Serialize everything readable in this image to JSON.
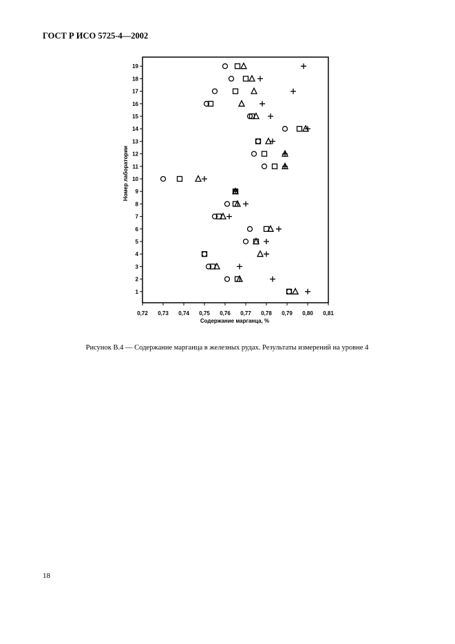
{
  "header": {
    "title": "ГОСТ Р ИСО 5725-4—2002"
  },
  "chart_data": {
    "type": "scatter",
    "x_label": "Содержание марганца, %",
    "y_label": "Номер лаборатории",
    "xlim": [
      0.72,
      0.81
    ],
    "xticks": [
      {
        "value": 0.72,
        "label": "0,72"
      },
      {
        "value": 0.73,
        "label": "0,73"
      },
      {
        "value": 0.74,
        "label": "0,74"
      },
      {
        "value": 0.75,
        "label": "0,75"
      },
      {
        "value": 0.76,
        "label": "0,76"
      },
      {
        "value": 0.77,
        "label": "0,77"
      },
      {
        "value": 0.78,
        "label": "0,78"
      },
      {
        "value": 0.79,
        "label": "0,79"
      },
      {
        "value": 0.8,
        "label": "0,80"
      },
      {
        "value": 0.81,
        "label": "0,81"
      }
    ],
    "ylim": [
      0,
      20
    ],
    "yticks": [
      1,
      2,
      3,
      4,
      5,
      6,
      7,
      8,
      9,
      10,
      11,
      12,
      13,
      14,
      15,
      16,
      17,
      18,
      19
    ],
    "y": [
      1,
      2,
      3,
      4,
      5,
      6,
      7,
      8,
      9,
      10,
      11,
      12,
      13,
      14,
      15,
      16,
      17,
      18,
      19
    ],
    "color": "#000000",
    "series": [
      {
        "marker": "circle",
        "x": [
          0.791,
          0.761,
          0.752,
          0.75,
          0.77,
          0.772,
          0.755,
          0.761,
          0.765,
          0.73,
          0.779,
          0.774,
          0.776,
          0.789,
          0.772,
          0.751,
          0.755,
          0.763,
          0.76
        ]
      },
      {
        "marker": "square",
        "x": [
          0.791,
          0.766,
          0.754,
          0.75,
          0.775,
          0.78,
          0.757,
          0.765,
          0.765,
          0.738,
          0.784,
          0.779,
          0.776,
          0.796,
          0.773,
          0.753,
          0.765,
          0.77,
          0.766
        ]
      },
      {
        "marker": "triangle",
        "x": [
          0.794,
          0.767,
          0.756,
          0.777,
          0.775,
          0.782,
          0.759,
          0.766,
          0.765,
          0.747,
          0.789,
          0.789,
          0.781,
          0.799,
          0.775,
          0.768,
          0.774,
          0.773,
          0.769
        ]
      },
      {
        "marker": "plus",
        "x": [
          0.8,
          0.783,
          0.767,
          0.78,
          0.78,
          0.786,
          0.762,
          0.77,
          0.765,
          0.75,
          0.789,
          0.789,
          0.783,
          0.8,
          0.782,
          0.778,
          0.793,
          0.777,
          0.798
        ]
      }
    ]
  },
  "caption": "Рисунок В.4 — Содержание марганца в железных рудах. Результаты измерений на уровне 4",
  "page_number": "18"
}
